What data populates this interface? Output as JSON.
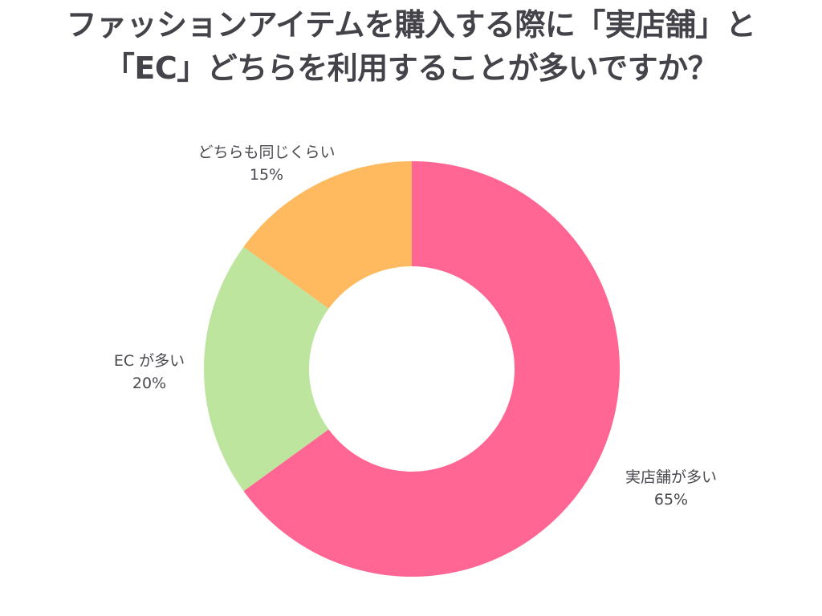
{
  "chart_data": {
    "type": "pie",
    "variant": "donut",
    "title": "ファッションアイテムを購入する際に「実店舗」と「EC」どちらを利用することが多いですか？",
    "title_lines": [
      "ファッションアイテムを購入する際に「実店舗」と",
      "「EC」どちらを利用することが多いですか？"
    ],
    "categories": [
      "実店舗が多い",
      "ECが多い",
      "どちらも同じくらい"
    ],
    "values": [
      65,
      20,
      15
    ],
    "unit": "%",
    "colors": [
      "#ff6694",
      "#bde59d",
      "#ffb95e"
    ],
    "start_angle_deg": 0,
    "direction": "clockwise",
    "legend": "none (direct labels)",
    "slices": [
      {
        "label": "実店舗が多い",
        "value": 65,
        "value_text": "65%",
        "color": "#ff6694"
      },
      {
        "label": "EC が多い",
        "value": 20,
        "value_text": "20%",
        "color": "#bde59d"
      },
      {
        "label": "どちらも同じくらい",
        "value": 15,
        "value_text": "15%",
        "color": "#ffb95e"
      }
    ]
  },
  "title": {
    "line1": "ファッションアイテムを購入する際に「実店舗」と",
    "line2": "「EC」どちらを利用することが多いですか？"
  },
  "labels": {
    "store": {
      "name": "実店舗が多い",
      "pct": "65%"
    },
    "ec": {
      "name": "EC が多い",
      "pct": "20%"
    },
    "same": {
      "name": "どちらも同じくらい",
      "pct": "15%"
    }
  },
  "colors": {
    "title_text": "#44434a",
    "label_text": "#4a4950",
    "background": "#ffffff"
  }
}
